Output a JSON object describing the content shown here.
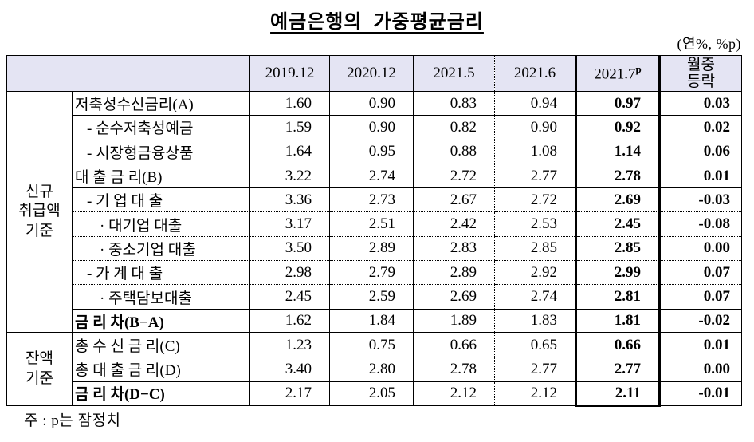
{
  "title": "예금은행의  가중평균금리",
  "unit_label": "(연%, %p)",
  "footnote": "주 : p는 잠정치",
  "colors": {
    "header_bg": "#e4e4f3",
    "border": "#000000"
  },
  "table": {
    "corner_label": "",
    "columns": [
      {
        "label": "2019.12"
      },
      {
        "label": "2020.12"
      },
      {
        "label": "2021.5"
      },
      {
        "label": "2021.6"
      },
      {
        "label": "2021.7",
        "superscript": "p"
      },
      {
        "label": "월중",
        "label_line2": "등락"
      }
    ],
    "groups": [
      {
        "label_lines": [
          "신규",
          "취급액",
          "기준"
        ],
        "rows": 10
      },
      {
        "label_lines": [
          "잔액",
          "기준"
        ],
        "rows": 3
      }
    ],
    "rows": [
      {
        "label": "저축성수신금리(A)",
        "indent": 0,
        "bold_label": false,
        "values": [
          "1.60",
          "0.90",
          "0.83",
          "0.94",
          "0.97",
          "0.03"
        ],
        "divider": "solid"
      },
      {
        "label": "- 순수저축성예금",
        "indent": 1,
        "bold_label": false,
        "values": [
          "1.59",
          "0.90",
          "0.82",
          "0.90",
          "0.92",
          "0.02"
        ],
        "divider": "dotted"
      },
      {
        "label": "- 시장형금융상품",
        "indent": 1,
        "bold_label": false,
        "values": [
          "1.64",
          "0.95",
          "0.88",
          "1.08",
          "1.14",
          "0.06"
        ],
        "divider": "solid"
      },
      {
        "label": "대 출 금 리(B)",
        "indent": 0,
        "bold_label": false,
        "values": [
          "3.22",
          "2.74",
          "2.72",
          "2.77",
          "2.78",
          "0.01"
        ],
        "divider": "solid"
      },
      {
        "label": "- 기 업 대 출",
        "indent": 1,
        "bold_label": false,
        "values": [
          "3.36",
          "2.73",
          "2.67",
          "2.72",
          "2.69",
          "-0.03"
        ],
        "divider": "dotted"
      },
      {
        "label": "· 대기업 대출",
        "indent": 2,
        "bold_label": false,
        "values": [
          "3.17",
          "2.51",
          "2.42",
          "2.53",
          "2.45",
          "-0.08"
        ],
        "divider": "dotted"
      },
      {
        "label": "· 중소기업 대출",
        "indent": 2,
        "bold_label": false,
        "values": [
          "3.50",
          "2.89",
          "2.83",
          "2.85",
          "2.85",
          "0.00"
        ],
        "divider": "dotted"
      },
      {
        "label": "- 가 계 대 출",
        "indent": 1,
        "bold_label": false,
        "values": [
          "2.98",
          "2.79",
          "2.89",
          "2.92",
          "2.99",
          "0.07"
        ],
        "divider": "dotted"
      },
      {
        "label": "· 주택담보대출",
        "indent": 2,
        "bold_label": false,
        "values": [
          "2.45",
          "2.59",
          "2.69",
          "2.74",
          "2.81",
          "0.07"
        ],
        "divider": "solid"
      },
      {
        "label": "금 리 차(B−A)",
        "indent": 0,
        "bold_label": true,
        "values": [
          "1.62",
          "1.84",
          "1.89",
          "1.83",
          "1.81",
          "-0.02"
        ],
        "divider": "group"
      },
      {
        "label": "총 수 신 금 리(C)",
        "indent": 0,
        "bold_label": false,
        "values": [
          "1.23",
          "0.75",
          "0.66",
          "0.65",
          "0.66",
          "0.01"
        ],
        "divider": "dotted"
      },
      {
        "label": "총 대 출 금 리(D)",
        "indent": 0,
        "bold_label": false,
        "values": [
          "3.40",
          "2.80",
          "2.78",
          "2.77",
          "2.77",
          "0.00"
        ],
        "divider": "solid"
      },
      {
        "label": "금 리 차(D−C)",
        "indent": 0,
        "bold_label": true,
        "values": [
          "2.17",
          "2.05",
          "2.12",
          "2.12",
          "2.11",
          "-0.01"
        ],
        "divider": "bottom"
      }
    ]
  }
}
